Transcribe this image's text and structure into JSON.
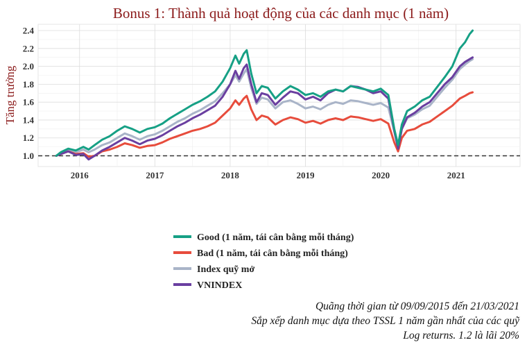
{
  "chart_data": {
    "type": "line",
    "title": "Bonus 1: Thành quả hoạt động của các danh mục (1 năm)",
    "xlabel": "",
    "ylabel": "Tăng trưởng",
    "xlim": [
      2015.45,
      2021.85
    ],
    "ylim": [
      0.88,
      2.47
    ],
    "x_ticks": [
      "2016",
      "2017",
      "2018",
      "2019",
      "2020",
      "2021"
    ],
    "y_ticks": [
      "1.0",
      "1.2",
      "1.4",
      "1.6",
      "1.8",
      "2.0",
      "2.2",
      "2.4"
    ],
    "reference_line": 1.0,
    "grid": true,
    "legend_position": "bottom",
    "x": [
      2015.69,
      2015.75,
      2015.85,
      2015.95,
      2016.05,
      2016.12,
      2016.2,
      2016.3,
      2016.4,
      2016.5,
      2016.6,
      2016.7,
      2016.8,
      2016.9,
      2017.0,
      2017.1,
      2017.2,
      2017.3,
      2017.4,
      2017.5,
      2017.6,
      2017.7,
      2017.8,
      2017.9,
      2018.0,
      2018.07,
      2018.12,
      2018.18,
      2018.22,
      2018.28,
      2018.35,
      2018.42,
      2018.5,
      2018.6,
      2018.7,
      2018.8,
      2018.9,
      2019.0,
      2019.1,
      2019.2,
      2019.3,
      2019.4,
      2019.5,
      2019.6,
      2019.7,
      2019.8,
      2019.9,
      2020.0,
      2020.1,
      2020.18,
      2020.23,
      2020.28,
      2020.35,
      2020.45,
      2020.55,
      2020.65,
      2020.75,
      2020.85,
      2020.95,
      2021.05,
      2021.12,
      2021.18,
      2021.22
    ],
    "series": [
      {
        "name": "Good (1 năm, tái cân bằng mỗi tháng)",
        "color": "#16a085",
        "values": [
          1.0,
          1.04,
          1.08,
          1.06,
          1.1,
          1.07,
          1.12,
          1.18,
          1.22,
          1.28,
          1.33,
          1.3,
          1.26,
          1.3,
          1.32,
          1.36,
          1.42,
          1.47,
          1.52,
          1.57,
          1.61,
          1.66,
          1.72,
          1.83,
          1.98,
          2.12,
          2.03,
          2.14,
          2.18,
          1.92,
          1.7,
          1.78,
          1.76,
          1.64,
          1.72,
          1.78,
          1.74,
          1.68,
          1.7,
          1.66,
          1.72,
          1.74,
          1.72,
          1.78,
          1.76,
          1.74,
          1.72,
          1.75,
          1.68,
          1.3,
          1.12,
          1.35,
          1.5,
          1.55,
          1.62,
          1.66,
          1.77,
          1.88,
          2.0,
          2.2,
          2.27,
          2.36,
          2.4
        ]
      },
      {
        "name": "Bad (1 năm, tái cân bằng mỗi tháng)",
        "color": "#e74c3c",
        "values": [
          1.0,
          1.02,
          1.05,
          1.02,
          1.03,
          0.99,
          1.0,
          1.05,
          1.07,
          1.1,
          1.14,
          1.12,
          1.09,
          1.11,
          1.12,
          1.15,
          1.19,
          1.22,
          1.25,
          1.28,
          1.3,
          1.33,
          1.37,
          1.45,
          1.53,
          1.62,
          1.57,
          1.64,
          1.67,
          1.52,
          1.4,
          1.45,
          1.43,
          1.35,
          1.4,
          1.43,
          1.41,
          1.37,
          1.39,
          1.36,
          1.4,
          1.42,
          1.4,
          1.44,
          1.43,
          1.41,
          1.39,
          1.41,
          1.36,
          1.15,
          1.05,
          1.2,
          1.28,
          1.3,
          1.35,
          1.38,
          1.44,
          1.5,
          1.56,
          1.64,
          1.67,
          1.7,
          1.71
        ]
      },
      {
        "name": "Index quỹ mở",
        "color": "#a9b4c8",
        "values": [
          1.0,
          1.03,
          1.06,
          1.04,
          1.07,
          1.04,
          1.07,
          1.12,
          1.15,
          1.2,
          1.25,
          1.22,
          1.18,
          1.22,
          1.24,
          1.28,
          1.33,
          1.38,
          1.42,
          1.47,
          1.51,
          1.56,
          1.61,
          1.7,
          1.8,
          1.9,
          1.83,
          1.92,
          1.97,
          1.76,
          1.58,
          1.65,
          1.63,
          1.53,
          1.6,
          1.62,
          1.58,
          1.53,
          1.55,
          1.52,
          1.57,
          1.6,
          1.58,
          1.62,
          1.61,
          1.59,
          1.57,
          1.59,
          1.54,
          1.27,
          1.1,
          1.3,
          1.42,
          1.46,
          1.52,
          1.56,
          1.66,
          1.76,
          1.85,
          1.97,
          2.02,
          2.06,
          2.08
        ]
      },
      {
        "name": "VNINDEX",
        "color": "#6a3fa0",
        "values": [
          1.0,
          1.02,
          1.05,
          1.01,
          1.02,
          0.96,
          1.0,
          1.06,
          1.1,
          1.15,
          1.2,
          1.17,
          1.13,
          1.17,
          1.19,
          1.23,
          1.28,
          1.33,
          1.37,
          1.42,
          1.46,
          1.51,
          1.56,
          1.66,
          1.8,
          1.95,
          1.86,
          1.98,
          2.02,
          1.8,
          1.6,
          1.7,
          1.68,
          1.57,
          1.65,
          1.72,
          1.7,
          1.63,
          1.66,
          1.62,
          1.7,
          1.74,
          1.72,
          1.78,
          1.77,
          1.74,
          1.7,
          1.72,
          1.64,
          1.28,
          1.08,
          1.3,
          1.43,
          1.48,
          1.55,
          1.6,
          1.7,
          1.8,
          1.88,
          2.0,
          2.05,
          2.08,
          2.1
        ]
      }
    ]
  },
  "notes": [
    "Quãng thời gian từ 09/09/2015 đến 21/03/2021",
    "Sắp xếp danh mục dựa theo TSSL 1 năm gần nhất của các quỹ",
    "Log returns. 1.2 là lãi 20%"
  ]
}
